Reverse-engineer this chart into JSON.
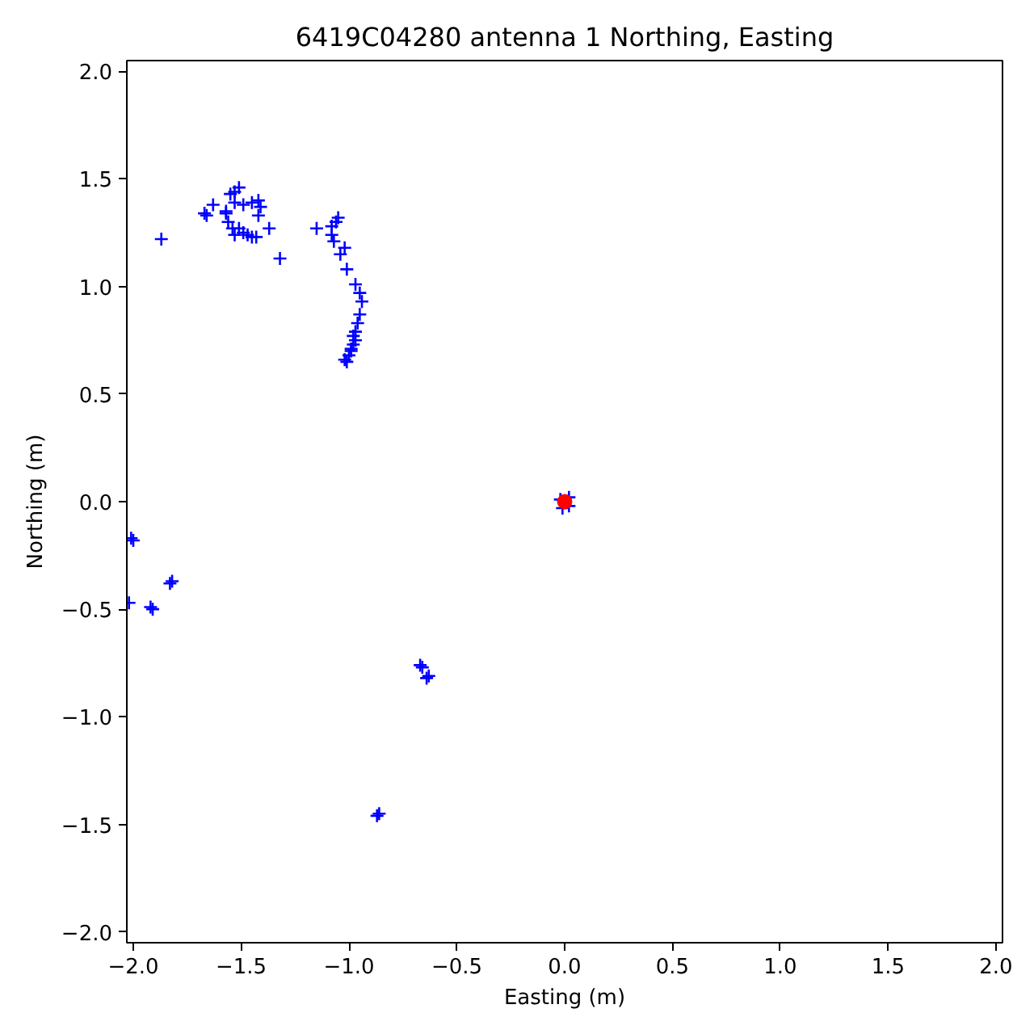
{
  "chart_data": {
    "type": "scatter",
    "title": "6419C04280 antenna 1 Northing, Easting",
    "xlabel": "Easting (m)",
    "ylabel": "Northing (m)",
    "xlim": [
      -2.03,
      2.03
    ],
    "ylim": [
      -2.05,
      2.05
    ],
    "xticks": [
      {
        "value": -2.0,
        "label": "−2.0"
      },
      {
        "value": -1.5,
        "label": "−1.5"
      },
      {
        "value": -1.0,
        "label": "−1.0"
      },
      {
        "value": -0.5,
        "label": "−0.5"
      },
      {
        "value": 0.0,
        "label": "0.0"
      },
      0.5,
      {
        "value": 1.0,
        "label": "1.0"
      },
      1.5,
      {
        "value": 2.0,
        "label": "2.0"
      }
    ],
    "yticks": [
      {
        "value": -2.0,
        "label": "−2.0"
      },
      {
        "value": -1.5,
        "label": "−1.5"
      },
      {
        "value": -1.0,
        "label": "−1.0"
      },
      {
        "value": -0.5,
        "label": "−0.5"
      },
      {
        "value": 0.0,
        "label": "0.0"
      },
      0.5,
      {
        "value": 1.0,
        "label": "1.0"
      },
      1.5,
      {
        "value": 2.0,
        "label": "2.0"
      }
    ],
    "series": [
      {
        "color": "#0000ff",
        "marker": "cross",
        "x": [
          -1.87,
          -1.67,
          -1.66,
          -1.63,
          -1.57,
          -1.57,
          -1.55,
          -1.53,
          -1.51,
          -1.53,
          -1.56,
          -1.54,
          -1.53,
          -1.51,
          -1.49,
          -1.49,
          -1.47,
          -1.45,
          -1.43,
          -1.45,
          -1.42,
          -1.41,
          -1.42,
          -1.37,
          -1.32,
          -1.15,
          -1.08,
          -1.06,
          -1.05,
          -1.08,
          -1.07,
          -1.02,
          -1.04,
          -1.01,
          -0.97,
          -0.95,
          -0.94,
          -0.95,
          -0.96,
          -0.97,
          -0.97,
          -0.98,
          -0.99,
          -1.0,
          -1.01,
          -1.02,
          -0.99,
          -0.98,
          -2.0,
          -2.01,
          -2.02,
          -1.91,
          -1.92,
          -1.83,
          -1.82,
          -0.66,
          -0.67,
          -0.63,
          -0.64,
          -0.86,
          -0.87,
          0.02,
          -0.02,
          0.02,
          -0.01
        ],
        "values": [
          1.22,
          1.34,
          1.33,
          1.38,
          1.35,
          1.34,
          1.43,
          1.44,
          1.46,
          1.39,
          1.3,
          1.27,
          1.24,
          1.27,
          1.38,
          1.25,
          1.24,
          1.23,
          1.23,
          1.39,
          1.4,
          1.37,
          1.33,
          1.27,
          1.13,
          1.27,
          1.28,
          1.3,
          1.32,
          1.24,
          1.21,
          1.18,
          1.15,
          1.08,
          1.01,
          0.97,
          0.93,
          0.87,
          0.83,
          0.79,
          0.75,
          0.73,
          0.7,
          0.68,
          0.65,
          0.66,
          0.71,
          0.77,
          -0.18,
          -0.17,
          -0.47,
          -0.5,
          -0.49,
          -0.38,
          -0.37,
          -0.77,
          -0.76,
          -0.81,
          -0.82,
          -1.45,
          -1.46,
          0.02,
          0.01,
          -0.02,
          -0.03
        ]
      },
      {
        "color": "#ff0000",
        "marker": "circle",
        "x": [
          0.0
        ],
        "values": [
          0.0
        ]
      }
    ]
  }
}
